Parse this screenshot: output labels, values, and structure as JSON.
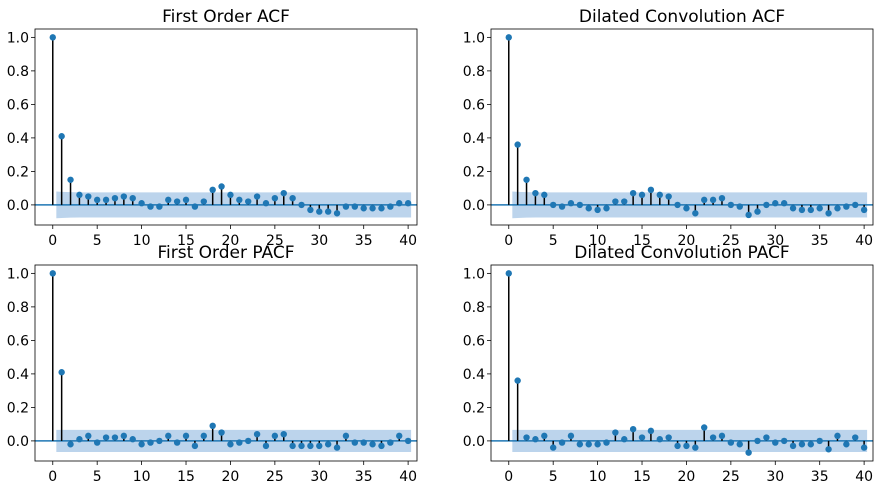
{
  "colors": {
    "stem": "#000000",
    "marker": "#1f77b4",
    "baseline": "#1f77b4",
    "band": "#a6c6e6"
  },
  "chart_data": [
    {
      "type": "stem",
      "title": "First Order ACF",
      "xlim": [
        -2,
        41
      ],
      "ylim": [
        -0.12,
        1.05
      ],
      "xticks": [
        "0",
        "5",
        "10",
        "15",
        "20",
        "25",
        "30",
        "35",
        "40"
      ],
      "yticks": [
        "0.0",
        "0.2",
        "0.4",
        "0.6",
        "0.8",
        "1.0"
      ],
      "x": [
        0,
        1,
        2,
        3,
        4,
        5,
        6,
        7,
        8,
        9,
        10,
        11,
        12,
        13,
        14,
        15,
        16,
        17,
        18,
        19,
        20,
        21,
        22,
        23,
        24,
        25,
        26,
        27,
        28,
        29,
        30,
        31,
        32,
        33,
        34,
        35,
        36,
        37,
        38,
        39,
        40
      ],
      "values": [
        1.0,
        0.41,
        0.15,
        0.06,
        0.05,
        0.03,
        0.03,
        0.04,
        0.05,
        0.04,
        0.01,
        -0.01,
        -0.01,
        0.03,
        0.02,
        0.03,
        -0.01,
        0.02,
        0.09,
        0.11,
        0.06,
        0.03,
        0.02,
        0.05,
        0.01,
        0.04,
        0.07,
        0.04,
        0.0,
        -0.03,
        -0.04,
        -0.04,
        -0.05,
        -0.01,
        -0.01,
        -0.02,
        -0.02,
        -0.02,
        -0.01,
        0.01,
        0.01
      ],
      "confidence_band": [
        0.08,
        0.078,
        0.076,
        0.075,
        0.075,
        0.075,
        0.075,
        0.075,
        0.075,
        0.075,
        0.075,
        0.075,
        0.075,
        0.075,
        0.075,
        0.075,
        0.075,
        0.075,
        0.075,
        0.075,
        0.075,
        0.075,
        0.075,
        0.075,
        0.075,
        0.075,
        0.075,
        0.075,
        0.075,
        0.075,
        0.075,
        0.075,
        0.075,
        0.075,
        0.075,
        0.075,
        0.075,
        0.075,
        0.075,
        0.075,
        0.075
      ]
    },
    {
      "type": "stem",
      "title": "Dilated Convolution ACF",
      "xlim": [
        -2,
        41
      ],
      "ylim": [
        -0.12,
        1.05
      ],
      "xticks": [
        "0",
        "5",
        "10",
        "15",
        "20",
        "25",
        "30",
        "35",
        "40"
      ],
      "yticks": [
        "0.0",
        "0.2",
        "0.4",
        "0.6",
        "0.8",
        "1.0"
      ],
      "x": [
        0,
        1,
        2,
        3,
        4,
        5,
        6,
        7,
        8,
        9,
        10,
        11,
        12,
        13,
        14,
        15,
        16,
        17,
        18,
        19,
        20,
        21,
        22,
        23,
        24,
        25,
        26,
        27,
        28,
        29,
        30,
        31,
        32,
        33,
        34,
        35,
        36,
        37,
        38,
        39,
        40
      ],
      "values": [
        1.0,
        0.36,
        0.15,
        0.07,
        0.06,
        0.0,
        -0.01,
        0.01,
        0.0,
        -0.02,
        -0.03,
        -0.02,
        0.02,
        0.02,
        0.07,
        0.06,
        0.09,
        0.06,
        0.05,
        0.0,
        -0.02,
        -0.05,
        0.03,
        0.03,
        0.04,
        0.0,
        -0.01,
        -0.06,
        -0.04,
        0.0,
        0.01,
        0.01,
        -0.02,
        -0.03,
        -0.03,
        -0.02,
        -0.05,
        -0.02,
        -0.01,
        0.0,
        -0.03
      ],
      "confidence_band": [
        0.08,
        0.078,
        0.076,
        0.075,
        0.075,
        0.075,
        0.075,
        0.075,
        0.075,
        0.075,
        0.075,
        0.075,
        0.075,
        0.075,
        0.075,
        0.075,
        0.075,
        0.075,
        0.075,
        0.075,
        0.075,
        0.075,
        0.075,
        0.075,
        0.075,
        0.075,
        0.075,
        0.075,
        0.075,
        0.075,
        0.075,
        0.075,
        0.075,
        0.075,
        0.075,
        0.075,
        0.075,
        0.075,
        0.075,
        0.075,
        0.075
      ]
    },
    {
      "type": "stem",
      "title": "First Order PACF",
      "xlim": [
        -2,
        41
      ],
      "ylim": [
        -0.12,
        1.05
      ],
      "xticks": [
        "0",
        "5",
        "10",
        "15",
        "20",
        "25",
        "30",
        "35",
        "40"
      ],
      "yticks": [
        "0.0",
        "0.2",
        "0.4",
        "0.6",
        "0.8",
        "1.0"
      ],
      "x": [
        0,
        1,
        2,
        3,
        4,
        5,
        6,
        7,
        8,
        9,
        10,
        11,
        12,
        13,
        14,
        15,
        16,
        17,
        18,
        19,
        20,
        21,
        22,
        23,
        24,
        25,
        26,
        27,
        28,
        29,
        30,
        31,
        32,
        33,
        34,
        35,
        36,
        37,
        38,
        39,
        40
      ],
      "values": [
        1.0,
        0.41,
        -0.02,
        0.01,
        0.03,
        -0.01,
        0.02,
        0.02,
        0.03,
        0.01,
        -0.02,
        -0.01,
        0.0,
        0.03,
        -0.01,
        0.03,
        -0.03,
        0.03,
        0.09,
        0.05,
        -0.02,
        -0.01,
        0.0,
        0.04,
        -0.03,
        0.03,
        0.04,
        -0.03,
        -0.03,
        -0.03,
        -0.03,
        -0.02,
        -0.04,
        0.03,
        -0.01,
        -0.01,
        -0.02,
        -0.03,
        -0.01,
        0.03,
        0.0
      ],
      "confidence_band": [
        0.066,
        0.066,
        0.066,
        0.066,
        0.066,
        0.066,
        0.066,
        0.066,
        0.066,
        0.066,
        0.066,
        0.066,
        0.066,
        0.066,
        0.066,
        0.066,
        0.066,
        0.066,
        0.066,
        0.066,
        0.066,
        0.066,
        0.066,
        0.066,
        0.066,
        0.066,
        0.066,
        0.066,
        0.066,
        0.066,
        0.066,
        0.066,
        0.066,
        0.066,
        0.066,
        0.066,
        0.066,
        0.066,
        0.066,
        0.066,
        0.066
      ]
    },
    {
      "type": "stem",
      "title": "Dilated Convolution PACF",
      "xlim": [
        -2,
        41
      ],
      "ylim": [
        -0.12,
        1.05
      ],
      "xticks": [
        "0",
        "5",
        "10",
        "15",
        "20",
        "25",
        "30",
        "35",
        "40"
      ],
      "yticks": [
        "0.0",
        "0.2",
        "0.4",
        "0.6",
        "0.8",
        "1.0"
      ],
      "x": [
        0,
        1,
        2,
        3,
        4,
        5,
        6,
        7,
        8,
        9,
        10,
        11,
        12,
        13,
        14,
        15,
        16,
        17,
        18,
        19,
        20,
        21,
        22,
        23,
        24,
        25,
        26,
        27,
        28,
        29,
        30,
        31,
        32,
        33,
        34,
        35,
        36,
        37,
        38,
        39,
        40
      ],
      "values": [
        1.0,
        0.36,
        0.02,
        0.01,
        0.03,
        -0.04,
        -0.01,
        0.03,
        -0.02,
        -0.02,
        -0.02,
        -0.01,
        0.05,
        0.01,
        0.07,
        0.02,
        0.06,
        0.01,
        0.02,
        -0.03,
        -0.03,
        -0.04,
        0.08,
        0.02,
        0.03,
        -0.01,
        -0.02,
        -0.07,
        0.0,
        0.02,
        -0.01,
        0.0,
        -0.03,
        -0.02,
        -0.02,
        0.0,
        -0.05,
        0.03,
        -0.02,
        0.02,
        -0.04
      ],
      "confidence_band": [
        0.066,
        0.066,
        0.066,
        0.066,
        0.066,
        0.066,
        0.066,
        0.066,
        0.066,
        0.066,
        0.066,
        0.066,
        0.066,
        0.066,
        0.066,
        0.066,
        0.066,
        0.066,
        0.066,
        0.066,
        0.066,
        0.066,
        0.066,
        0.066,
        0.066,
        0.066,
        0.066,
        0.066,
        0.066,
        0.066,
        0.066,
        0.066,
        0.066,
        0.066,
        0.066,
        0.066,
        0.066,
        0.066,
        0.066,
        0.066,
        0.066
      ]
    }
  ]
}
